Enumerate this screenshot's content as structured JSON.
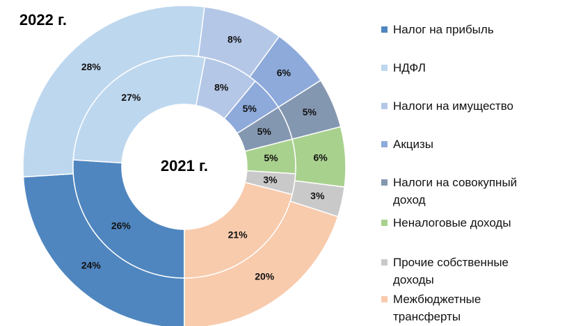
{
  "chart_data": {
    "type": "pie",
    "categories": [
      "Налог на прибыль",
      "НДФЛ",
      "Налоги на имущество",
      "Акцизы",
      "Налоги на совокупный доход",
      "Неналоговые доходы",
      "Прочие собственные доходы",
      "Межбюджетные трансферты"
    ],
    "colors": [
      "#4f86bf",
      "#bdd7ee",
      "#b4c7e7",
      "#8eaadb",
      "#8497b0",
      "#a9d18e",
      "#c9c9c9",
      "#f8cbad"
    ],
    "series": [
      {
        "name": "2022 г.",
        "values": [
          24,
          28,
          8,
          6,
          5,
          6,
          3,
          20
        ],
        "value_labels": [
          "24%",
          "28%",
          "8%",
          "6%",
          "5%",
          "6%",
          "3%",
          "20%"
        ]
      },
      {
        "name": "2021 г.",
        "values": [
          26,
          27,
          8,
          5,
          5,
          5,
          3,
          21
        ],
        "value_labels": [
          "26%",
          "27%",
          "8%",
          "5%",
          "5%",
          "5%",
          "3%",
          "21%"
        ]
      }
    ]
  }
}
